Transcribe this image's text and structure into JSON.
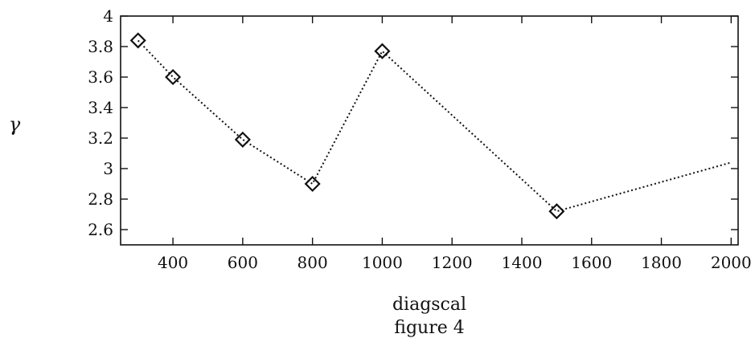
{
  "chart_data": {
    "type": "line",
    "title": "",
    "caption": "figure 4",
    "xlabel": "diagscal",
    "ylabel": "γ",
    "xlim": [
      250,
      2020
    ],
    "ylim": [
      2.5,
      4.0
    ],
    "xticks": [
      400,
      600,
      800,
      1000,
      1200,
      1400,
      1600,
      1800,
      2000
    ],
    "xtick_labels": [
      "400",
      "600",
      "800",
      "1000",
      "1200",
      "1400",
      "1600",
      "1800",
      "2000"
    ],
    "yticks": [
      2.6,
      2.8,
      3.0,
      3.2,
      3.4,
      3.6,
      3.8,
      4.0
    ],
    "ytick_labels": [
      "2.6",
      "2.8",
      "3",
      "3.2",
      "3.4",
      "3.6",
      "3.8",
      "4"
    ],
    "grid": false,
    "line_style": "dotted",
    "marker": "diamond",
    "series": [
      {
        "x": [
          300,
          400,
          600,
          800,
          1000,
          1500,
          2000
        ],
        "y": [
          3.84,
          3.6,
          3.19,
          2.9,
          3.77,
          2.72,
          3.04
        ],
        "markers": [
          true,
          true,
          true,
          true,
          true,
          true,
          false
        ]
      }
    ]
  }
}
